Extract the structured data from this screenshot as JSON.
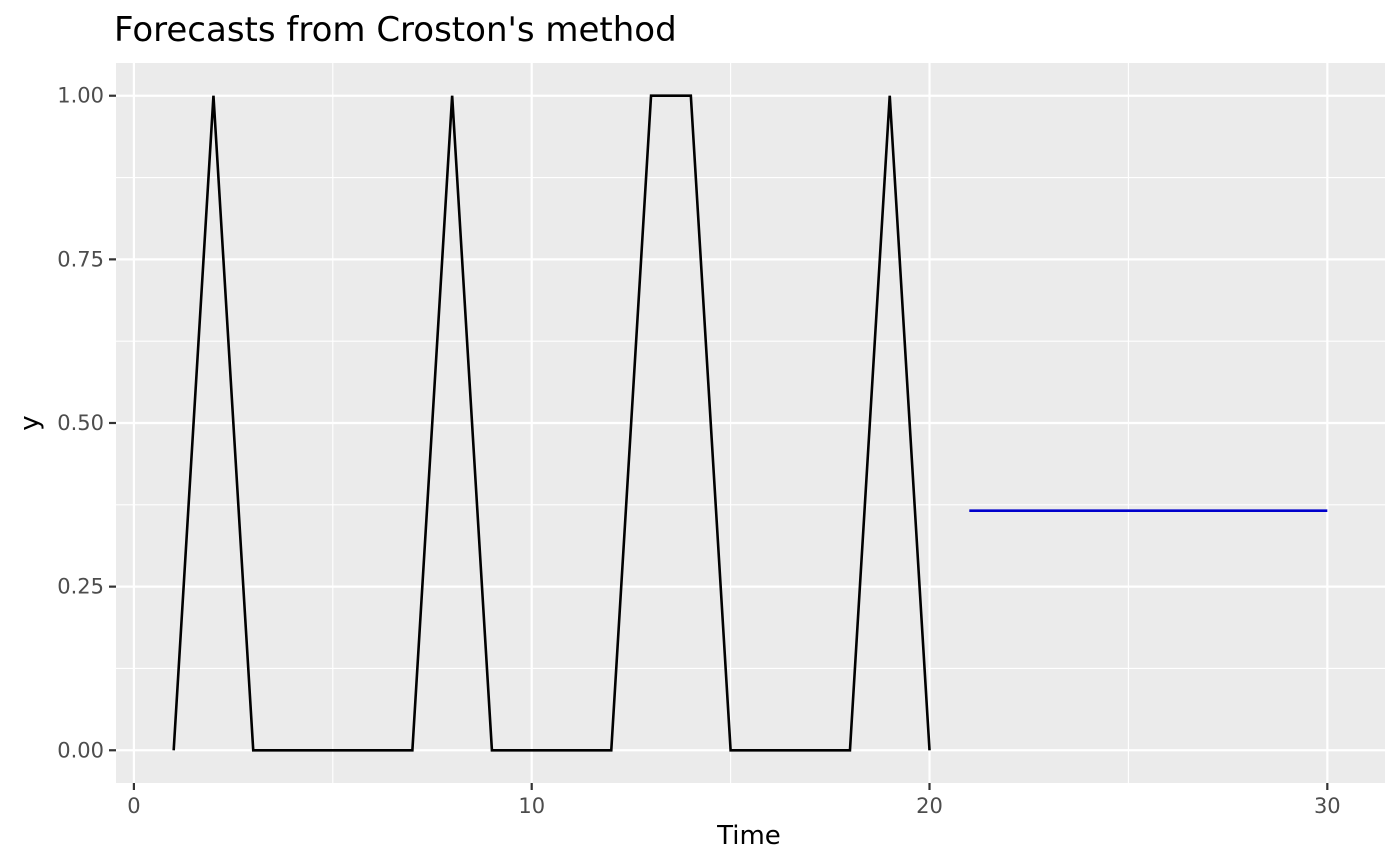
{
  "chart_data": {
    "type": "line",
    "title": "Forecasts from Croston's method",
    "xlabel": "Time",
    "ylabel": "y",
    "xlim": [
      -0.45,
      31.45
    ],
    "ylim": [
      -0.05,
      1.05
    ],
    "x_ticks": [
      0,
      10,
      20,
      30
    ],
    "x_tick_labels": [
      "0",
      "10",
      "20",
      "30"
    ],
    "x_minor_ticks": [
      5,
      15,
      25
    ],
    "y_ticks": [
      0,
      0.25,
      0.5,
      0.75,
      1
    ],
    "y_tick_labels": [
      "0.00",
      "0.25",
      "0.50",
      "0.75",
      "1.00"
    ],
    "y_minor_ticks": [
      0.125,
      0.375,
      0.625,
      0.875
    ],
    "grid": true,
    "legend": "none",
    "colors": {
      "panel": "#ebebeb",
      "grid": "#ffffff",
      "observed": "#000000",
      "forecast": "#0000cc"
    },
    "series": [
      {
        "x": [
          1,
          2,
          3,
          4,
          5,
          6,
          7,
          8,
          9,
          10,
          11,
          12,
          13,
          14,
          15,
          16,
          17,
          18,
          19,
          20
        ],
        "values": [
          0,
          1,
          0,
          0,
          0,
          0,
          0,
          1,
          0,
          0,
          0,
          0,
          1,
          1,
          0,
          0,
          0,
          0,
          1,
          0
        ]
      },
      {
        "x": [
          21,
          22,
          23,
          24,
          25,
          26,
          27,
          28,
          29,
          30
        ],
        "values": [
          0.366,
          0.366,
          0.366,
          0.366,
          0.366,
          0.366,
          0.366,
          0.366,
          0.366,
          0.366
        ]
      }
    ]
  }
}
